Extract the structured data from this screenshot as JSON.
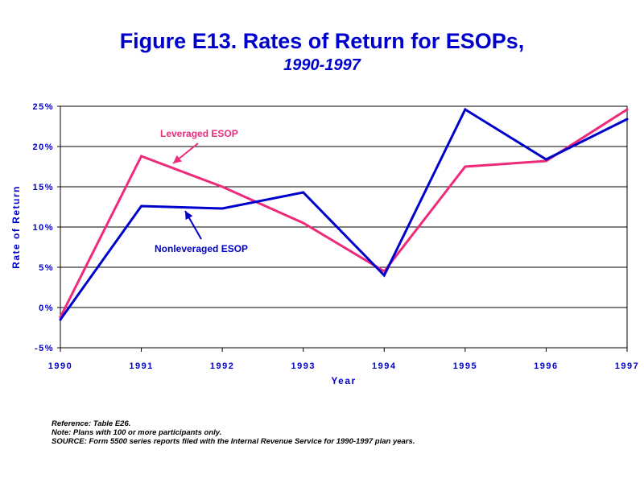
{
  "title": "Figure E13.  Rates of Return for ESOPs,",
  "subtitle": "1990-1997",
  "chart_data": {
    "type": "line",
    "title": "Figure E13.  Rates of Return for ESOPs, 1990-1997",
    "xlabel": "Year",
    "ylabel": "Rate of Return",
    "categories": [
      "1990",
      "1991",
      "1992",
      "1993",
      "1994",
      "1995",
      "1996",
      "1997"
    ],
    "y_ticks": [
      -5,
      0,
      5,
      10,
      15,
      20,
      25
    ],
    "y_tick_labels": [
      "-5%",
      "0%",
      "5%",
      "10%",
      "15%",
      "20%",
      "25%"
    ],
    "ylim": [
      -5,
      25
    ],
    "grid": true,
    "series": [
      {
        "name": "Leveraged ESOP",
        "color": "#ee2a7b",
        "values": [
          -1.2,
          18.8,
          15.0,
          10.5,
          4.5,
          17.5,
          18.2,
          24.6
        ]
      },
      {
        "name": "Nonleveraged ESOP",
        "color": "#0000cc",
        "values": [
          -1.5,
          12.6,
          12.3,
          14.3,
          4.0,
          24.6,
          18.4,
          23.4
        ]
      }
    ]
  },
  "notes": {
    "reference": "Reference: Table E26.",
    "note": "Note: Plans with 100 or more participants only.",
    "source": "SOURCE: Form 5500 series reports filed with the Internal Revenue Service for 1990-1997 plan years."
  }
}
